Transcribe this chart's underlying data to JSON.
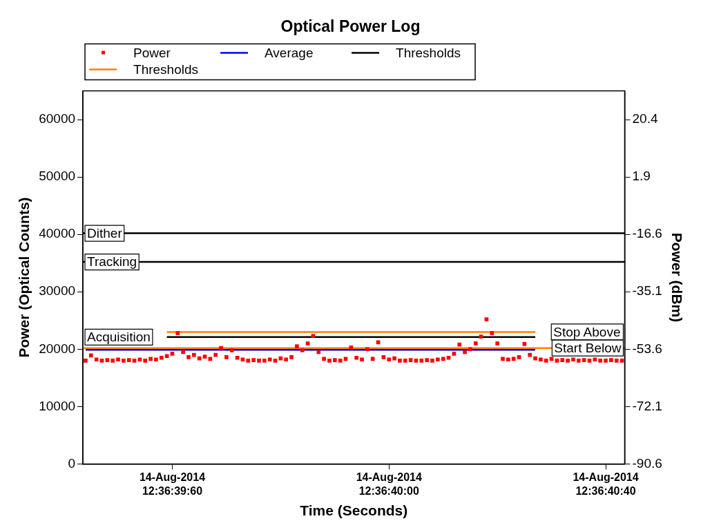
{
  "chart_data": {
    "type": "scatter",
    "title": "Optical Power Log",
    "xlabel": "Time (Seconds)",
    "ylabel": "Power (Optical Counts)",
    "y2label": "Power (dBm)",
    "categories": [
      null,
      null,
      null,
      null,
      null,
      null,
      null,
      null,
      null,
      null,
      null,
      null,
      null,
      null,
      null,
      null,
      "14-Aug-2014\n12:36:39:60",
      null,
      null,
      null,
      null,
      null,
      null,
      null,
      null,
      null,
      null,
      null,
      null,
      null,
      null,
      null,
      null,
      null,
      null,
      null,
      null,
      null,
      null,
      null,
      null,
      null,
      null,
      null,
      null,
      null,
      null,
      null,
      null,
      null,
      null,
      null,
      null,
      null,
      null,
      null,
      "14-Aug-2014\n12:36:40:00",
      null,
      null,
      null,
      null,
      null,
      null,
      null,
      null,
      null,
      null,
      null,
      null,
      null,
      null,
      null,
      null,
      null,
      null,
      null,
      null,
      null,
      null,
      null,
      null,
      null,
      null,
      null,
      null,
      null,
      null,
      null,
      null,
      null,
      null,
      null,
      null,
      null,
      null,
      null,
      "14-Aug-2014\n12:36:40:40",
      null,
      null,
      null
    ],
    "ylim": [
      0,
      65000
    ],
    "yticks": [
      0,
      10000,
      20000,
      30000,
      40000,
      50000,
      60000
    ],
    "y2lim": [
      -90.6,
      29.65
    ],
    "y2ticks": [
      -90.6,
      -72.1,
      -53.6,
      -35.1,
      -16.6,
      1.9,
      20.4
    ],
    "grid": false,
    "legend": "top",
    "series": [
      {
        "name": "Power",
        "color": "#ff0000",
        "marker": "square",
        "values": [
          18000,
          18900,
          18200,
          18000,
          18100,
          18000,
          18200,
          18000,
          18100,
          18000,
          18200,
          18000,
          18300,
          18200,
          18500,
          18800,
          19200,
          22800,
          19500,
          18600,
          19000,
          18400,
          18700,
          18300,
          19000,
          20200,
          18600,
          19800,
          18500,
          18200,
          18000,
          18100,
          18000,
          18000,
          18200,
          18000,
          18400,
          18200,
          18600,
          20500,
          19800,
          21000,
          22300,
          19500,
          18300,
          18000,
          18100,
          18000,
          18300,
          20300,
          18500,
          18200,
          20000,
          18300,
          21200,
          18600,
          18200,
          18400,
          18000,
          18000,
          18100,
          18000,
          18000,
          18100,
          18000,
          18200,
          18300,
          18500,
          19200,
          20800,
          19500,
          20000,
          21000,
          22200,
          25200,
          22800,
          21000,
          18300,
          18200,
          18300,
          18600,
          20900,
          19000,
          18400,
          18200,
          18000,
          18300,
          18000,
          18100,
          18000,
          18200,
          18000,
          18100,
          18000,
          18200,
          18000,
          18000,
          18100,
          18000,
          18000
        ]
      },
      {
        "name": "Average",
        "type": "line",
        "color": "#0000ff",
        "values": [
          19900,
          19900,
          19900,
          19900,
          19900,
          19900,
          19900,
          19900,
          19900,
          19900,
          19900,
          19900,
          19900,
          19900,
          19900,
          19900,
          19900,
          19900,
          19900,
          19900,
          19900,
          19900,
          19900,
          19900,
          19900,
          19900,
          19900,
          19900,
          19900,
          19900,
          19900,
          19900,
          19900,
          19900,
          19900,
          19900,
          19900,
          19900,
          19900,
          19900,
          19900,
          19900,
          19900,
          19900,
          19900,
          19900,
          19900,
          19900,
          19900,
          19900,
          19900,
          19900,
          19900,
          19900,
          19900,
          19900,
          19900,
          19900,
          19900,
          19900,
          19900,
          19900,
          19900,
          19900,
          19900,
          19900,
          19900,
          19900,
          19900,
          19900,
          19900,
          19900,
          19900,
          19900,
          19900,
          19900,
          19900,
          19900,
          19900,
          19900,
          19900,
          19900,
          19900,
          19900,
          null,
          null,
          null,
          null,
          null,
          null,
          null,
          null,
          null,
          null,
          null,
          null,
          null,
          null,
          null,
          null
        ]
      },
      {
        "name": "Thresholds",
        "type": "line",
        "color": "#000000",
        "values": [
          null,
          null,
          null,
          null,
          null,
          null,
          null,
          null,
          null,
          null,
          null,
          null,
          null,
          null,
          null,
          22100,
          22100,
          22100,
          22100,
          22100,
          22100,
          22100,
          22100,
          22100,
          22100,
          22100,
          22100,
          22100,
          22100,
          22100,
          22100,
          22100,
          22100,
          22100,
          22100,
          22100,
          22100,
          22100,
          22100,
          22100,
          22100,
          22100,
          22100,
          22100,
          22100,
          22100,
          22100,
          22100,
          22100,
          22100,
          22100,
          22100,
          22100,
          22100,
          22100,
          22100,
          22100,
          22100,
          22100,
          22100,
          22100,
          22100,
          22100,
          22100,
          22100,
          22100,
          22100,
          22100,
          22100,
          22100,
          22100,
          22100,
          22100,
          22100,
          22100,
          22100,
          22100,
          22100,
          22100,
          22100,
          22100,
          22100,
          22100,
          22100,
          null,
          null,
          null,
          null,
          null,
          null,
          null,
          null,
          null,
          null,
          null,
          null,
          null,
          null,
          null,
          null
        ]
      },
      {
        "name": "Thresholds",
        "type": "line",
        "color": "#ff8000",
        "values": [
          null,
          null,
          null,
          null,
          null,
          null,
          null,
          null,
          null,
          null,
          null,
          null,
          null,
          null,
          null,
          23000,
          23000,
          23000,
          23000,
          23000,
          23000,
          23000,
          23000,
          23000,
          23000,
          23000,
          23000,
          23000,
          23000,
          23000,
          23000,
          23000,
          23000,
          23000,
          23000,
          23000,
          23000,
          23000,
          23000,
          23000,
          23000,
          23000,
          23000,
          23000,
          23000,
          23000,
          23000,
          23000,
          23000,
          23000,
          23000,
          23000,
          23000,
          23000,
          23000,
          23000,
          23000,
          23000,
          23000,
          23000,
          23000,
          23000,
          23000,
          23000,
          23000,
          23000,
          23000,
          23000,
          23000,
          23000,
          23000,
          23000,
          23000,
          23000,
          23000,
          23000,
          23000,
          23000,
          23000,
          23000,
          23000,
          23000,
          23000,
          23000,
          null,
          null,
          null,
          null,
          null,
          null,
          null,
          null,
          null,
          null,
          null,
          null,
          null,
          null,
          null,
          null
        ]
      }
    ],
    "ref_lines": [
      {
        "axis": "y",
        "value": 40200,
        "label": "Dither",
        "color": "#000000"
      },
      {
        "axis": "y",
        "value": 35200,
        "label": "Tracking",
        "color": "#000000"
      },
      {
        "axis": "y",
        "value": 20200,
        "label": "Start Below",
        "color": "#ff8000"
      }
    ],
    "annotations": [
      "Acquisition",
      "Stop Above"
    ]
  }
}
